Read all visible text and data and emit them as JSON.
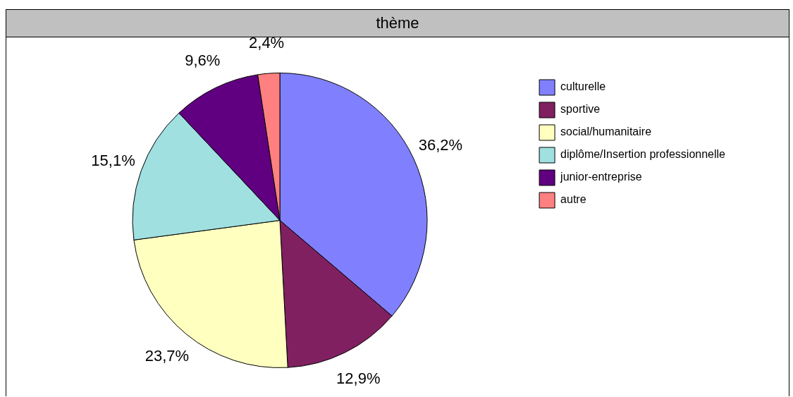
{
  "chart_data": {
    "type": "pie",
    "title": "thème",
    "categories": [
      "culturelle",
      "sportive",
      "social/humanitaire",
      "diplôme/Insertion professionnelle",
      "junior-entreprise",
      "autre"
    ],
    "values": [
      36.2,
      12.9,
      23.7,
      15.1,
      9.6,
      2.4
    ],
    "colors": [
      "#8080ff",
      "#802060",
      "#ffffc0",
      "#a0e0e0",
      "#600080",
      "#ff8080"
    ],
    "value_labels": [
      "36,2%",
      "12,9%",
      "23,7%",
      "15,1%",
      "9,6%",
      "2,4%"
    ],
    "legend": "right"
  }
}
